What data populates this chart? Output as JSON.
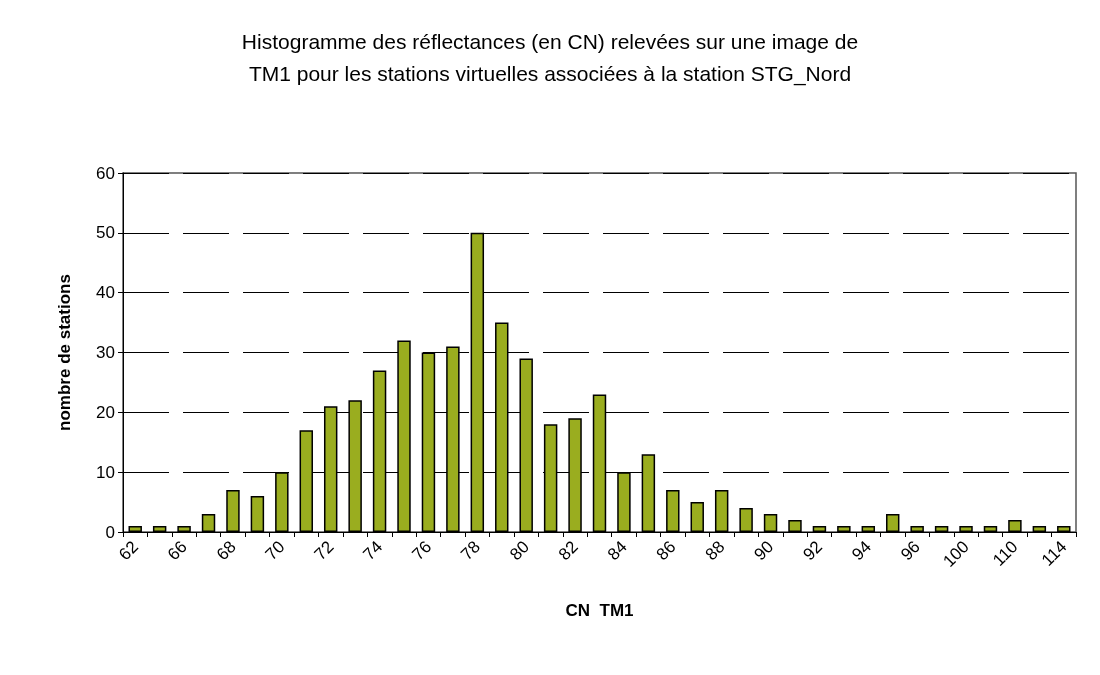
{
  "chart_data": {
    "type": "bar",
    "title": "Histogramme des réflectances (en CN) relevées sur une image de\nTM1 pour les stations virtuelles associées à la station STG_Nord",
    "xlabel": "CN  TM1",
    "ylabel": "nombre de stations",
    "categories": [
      "62",
      null,
      "66",
      null,
      "68",
      null,
      "70",
      null,
      "72",
      null,
      "74",
      null,
      "76",
      null,
      "78",
      null,
      "80",
      null,
      "82",
      null,
      "84",
      null,
      "86",
      null,
      "88",
      null,
      "90",
      null,
      "92",
      null,
      "94",
      null,
      "96",
      null,
      "100",
      null,
      "110",
      null,
      "114"
    ],
    "values": [
      1,
      1,
      1,
      3,
      7,
      6,
      10,
      17,
      21,
      22,
      27,
      32,
      30,
      31,
      50,
      35,
      29,
      18,
      19,
      23,
      10,
      13,
      7,
      5,
      7,
      4,
      3,
      2,
      1,
      1,
      1,
      3,
      1,
      1,
      1,
      1,
      2,
      1,
      1
    ],
    "color": "#9aad1f",
    "ylim": [
      0,
      60
    ],
    "yticks": [
      0,
      10,
      20,
      30,
      40,
      50,
      60
    ],
    "grid": "y"
  }
}
